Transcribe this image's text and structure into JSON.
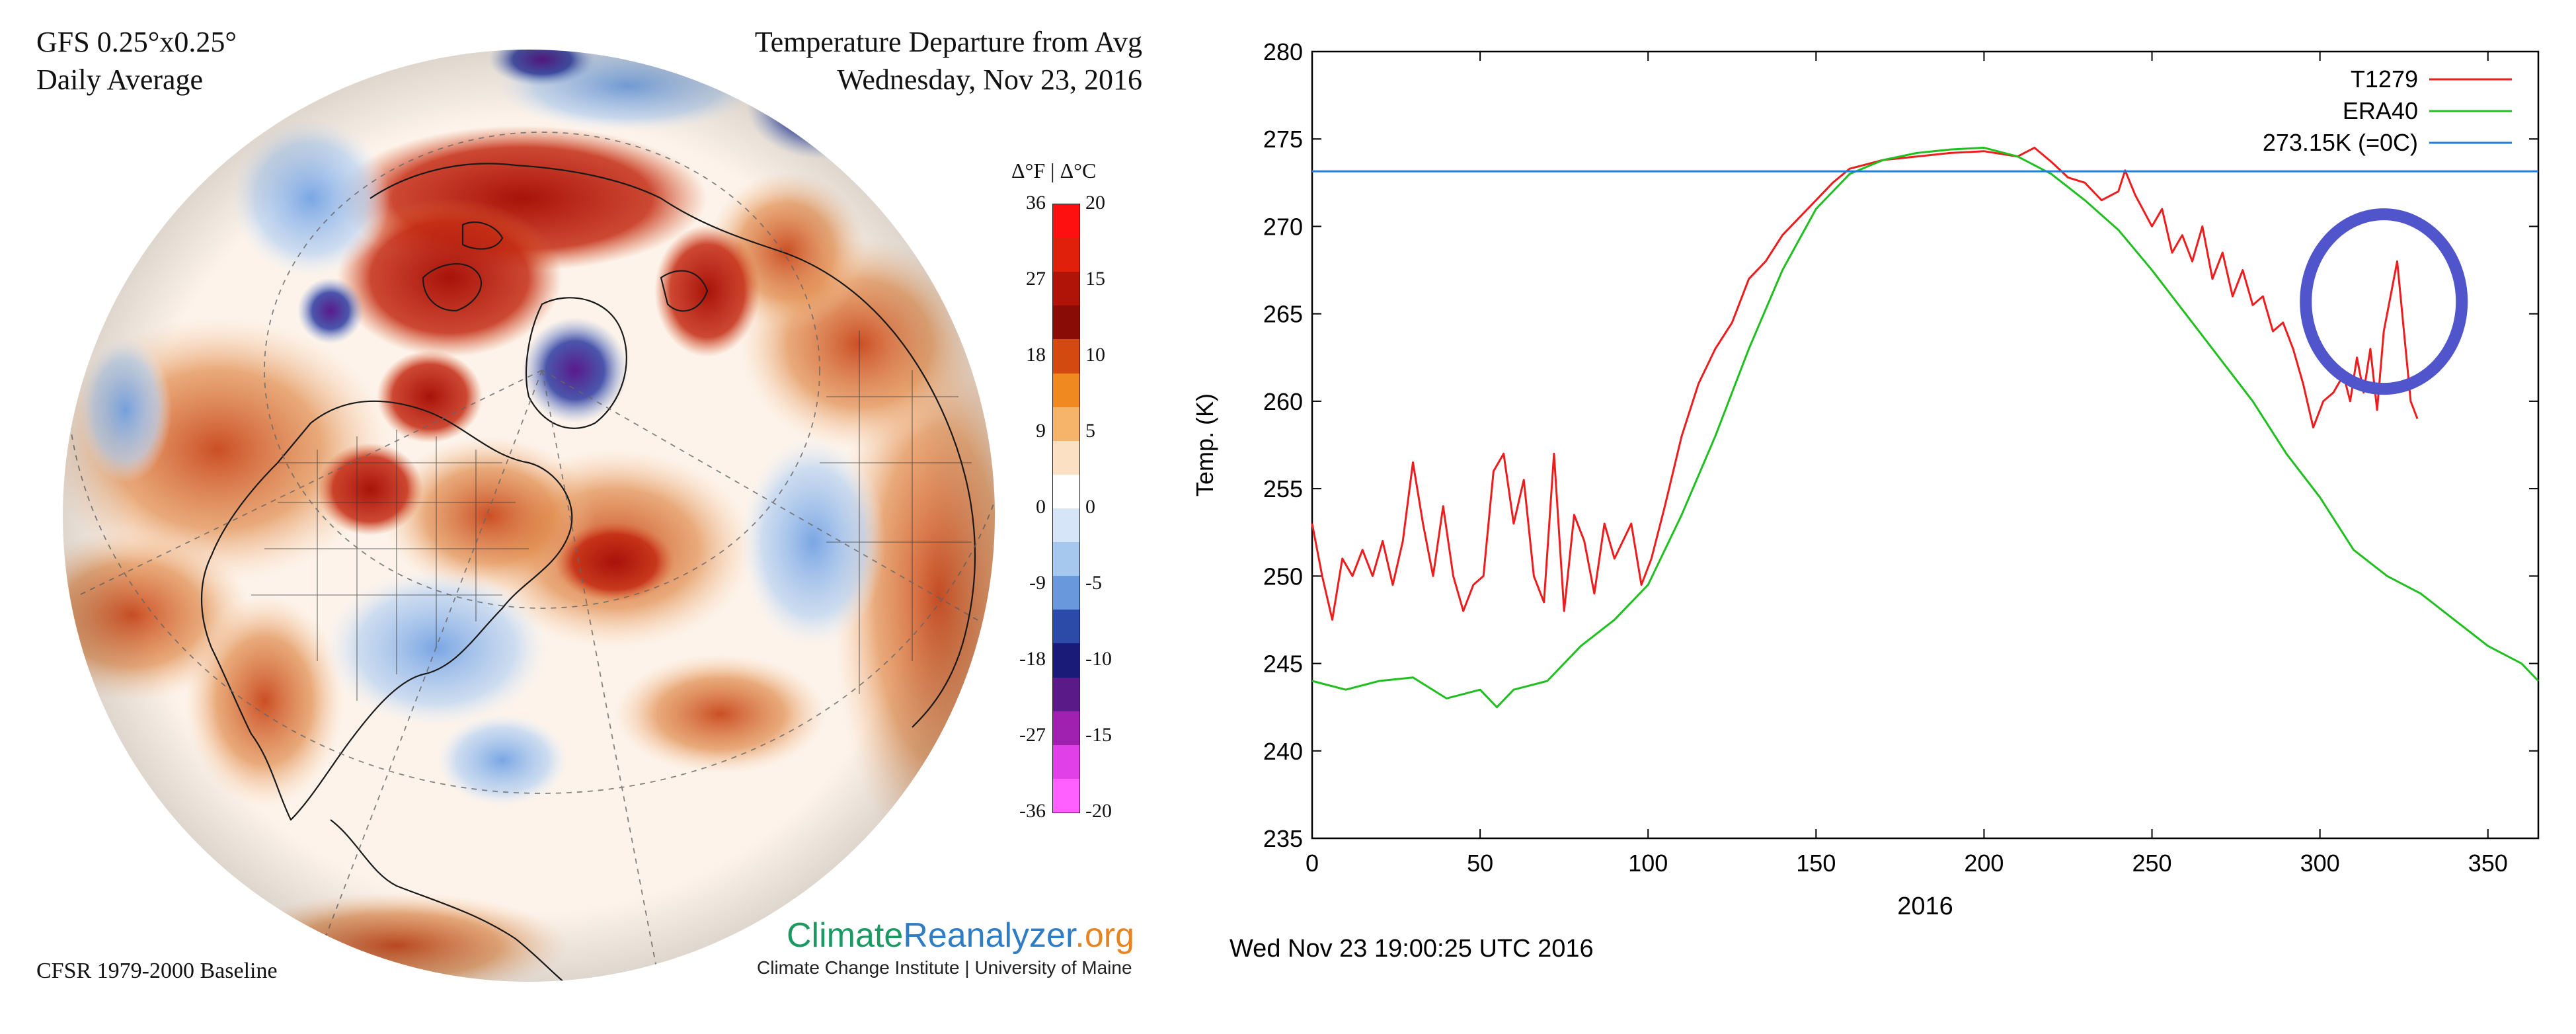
{
  "map": {
    "title_left_1": "GFS 0.25°x0.25°",
    "title_left_2": "Daily Average",
    "title_right_1": "Temperature Departure from Avg",
    "title_right_2": "Wednesday, Nov 23, 2016",
    "baseline": "CFSR 1979-2000 Baseline",
    "brand_a": "Climate",
    "brand_b": "Reanalyzer",
    "brand_c": ".org",
    "institute": "Climate Change Institute | University of Maine",
    "colorbar": {
      "header": "Δ°F | Δ°C",
      "f_ticks": [
        "36",
        "27",
        "18",
        "9",
        "0",
        "-9",
        "-18",
        "-27",
        "-36"
      ],
      "c_ticks": [
        "20",
        "15",
        "10",
        "5",
        "0",
        "-5",
        "-10",
        "-15",
        "-20"
      ],
      "colors": [
        "#ff1010",
        "#e0200a",
        "#b01408",
        "#8a0c06",
        "#d24a10",
        "#f08a20",
        "#f6b46a",
        "#fbe0c4",
        "#ffffff",
        "#d6e6f8",
        "#a6c8ee",
        "#6a98dc",
        "#2c4aa8",
        "#1a1a78",
        "#5a1a88",
        "#a020b0",
        "#e040e8",
        "#ff60ff"
      ]
    }
  },
  "chart_data": {
    "type": "line",
    "xlabel": "2016",
    "ylabel": "Temp. (K)",
    "xlim": [
      0,
      365
    ],
    "ylim": [
      235,
      280
    ],
    "xticks": [
      0,
      50,
      100,
      150,
      200,
      250,
      300,
      350
    ],
    "yticks": [
      235,
      240,
      245,
      250,
      255,
      260,
      265,
      270,
      275,
      280
    ],
    "legend_position": "top-right",
    "timestamp": "Wed Nov 23 19:00:25 UTC 2016",
    "series": [
      {
        "name": "T1279",
        "color": "#ee1c1c",
        "points": [
          [
            0,
            253
          ],
          [
            3,
            250
          ],
          [
            6,
            247.5
          ],
          [
            9,
            251
          ],
          [
            12,
            250
          ],
          [
            15,
            251.5
          ],
          [
            18,
            250
          ],
          [
            21,
            252
          ],
          [
            24,
            249.5
          ],
          [
            27,
            252
          ],
          [
            30,
            256.5
          ],
          [
            33,
            253
          ],
          [
            36,
            250
          ],
          [
            39,
            254
          ],
          [
            42,
            250
          ],
          [
            45,
            248
          ],
          [
            48,
            249.5
          ],
          [
            51,
            250
          ],
          [
            54,
            256
          ],
          [
            57,
            257
          ],
          [
            60,
            253
          ],
          [
            63,
            255.5
          ],
          [
            66,
            250
          ],
          [
            69,
            248.5
          ],
          [
            72,
            257
          ],
          [
            75,
            248
          ],
          [
            78,
            253.5
          ],
          [
            81,
            252
          ],
          [
            84,
            249
          ],
          [
            87,
            253
          ],
          [
            90,
            251
          ],
          [
            95,
            253
          ],
          [
            98,
            249.5
          ],
          [
            101,
            251
          ],
          [
            105,
            254
          ],
          [
            110,
            258
          ],
          [
            115,
            261
          ],
          [
            120,
            263
          ],
          [
            125,
            264.5
          ],
          [
            130,
            267
          ],
          [
            135,
            268
          ],
          [
            140,
            269.5
          ],
          [
            145,
            270.5
          ],
          [
            150,
            271.5
          ],
          [
            155,
            272.5
          ],
          [
            160,
            273.3
          ],
          [
            170,
            273.8
          ],
          [
            180,
            274
          ],
          [
            190,
            274.2
          ],
          [
            200,
            274.3
          ],
          [
            210,
            274
          ],
          [
            215,
            274.5
          ],
          [
            220,
            273.7
          ],
          [
            225,
            272.8
          ],
          [
            230,
            272.5
          ],
          [
            235,
            271.5
          ],
          [
            240,
            272
          ],
          [
            242,
            273.2
          ],
          [
            245,
            271.8
          ],
          [
            250,
            270
          ],
          [
            253,
            271
          ],
          [
            256,
            268.5
          ],
          [
            259,
            269.5
          ],
          [
            262,
            268
          ],
          [
            265,
            270
          ],
          [
            268,
            267
          ],
          [
            271,
            268.5
          ],
          [
            274,
            266
          ],
          [
            277,
            267.5
          ],
          [
            280,
            265.5
          ],
          [
            283,
            266
          ],
          [
            286,
            264
          ],
          [
            289,
            264.5
          ],
          [
            292,
            263
          ],
          [
            295,
            261
          ],
          [
            298,
            258.5
          ],
          [
            301,
            260
          ],
          [
            304,
            260.5
          ],
          [
            307,
            261.5
          ],
          [
            309,
            260
          ],
          [
            311,
            262.5
          ],
          [
            313,
            260.5
          ],
          [
            315,
            263
          ],
          [
            317,
            259.5
          ],
          [
            319,
            264
          ],
          [
            321,
            266
          ],
          [
            323,
            268
          ],
          [
            325,
            264
          ],
          [
            327,
            260
          ],
          [
            329,
            259
          ]
        ]
      },
      {
        "name": "ERA40",
        "color": "#1fbf1f",
        "points": [
          [
            0,
            244
          ],
          [
            10,
            243.5
          ],
          [
            20,
            244
          ],
          [
            30,
            244.2
          ],
          [
            40,
            243
          ],
          [
            50,
            243.5
          ],
          [
            55,
            242.5
          ],
          [
            60,
            243.5
          ],
          [
            70,
            244
          ],
          [
            80,
            246
          ],
          [
            90,
            247.5
          ],
          [
            100,
            249.5
          ],
          [
            110,
            253.5
          ],
          [
            120,
            258
          ],
          [
            130,
            263
          ],
          [
            140,
            267.5
          ],
          [
            150,
            271
          ],
          [
            160,
            273
          ],
          [
            170,
            273.8
          ],
          [
            180,
            274.2
          ],
          [
            190,
            274.4
          ],
          [
            200,
            274.5
          ],
          [
            210,
            274
          ],
          [
            220,
            273
          ],
          [
            230,
            271.5
          ],
          [
            240,
            269.8
          ],
          [
            250,
            267.5
          ],
          [
            260,
            265
          ],
          [
            270,
            262.5
          ],
          [
            280,
            260
          ],
          [
            290,
            257
          ],
          [
            300,
            254.5
          ],
          [
            310,
            251.5
          ],
          [
            320,
            250
          ],
          [
            330,
            249
          ],
          [
            340,
            247.5
          ],
          [
            350,
            246
          ],
          [
            360,
            245
          ],
          [
            365,
            244
          ]
        ]
      },
      {
        "name": "273.15K (=0C)",
        "color": "#1f7fdc",
        "points": [
          [
            0,
            273.15
          ],
          [
            365,
            273.15
          ]
        ]
      }
    ],
    "annotation": {
      "shape": "circle",
      "color": "#5055cc",
      "center": [
        319,
        265.7
      ]
    }
  }
}
